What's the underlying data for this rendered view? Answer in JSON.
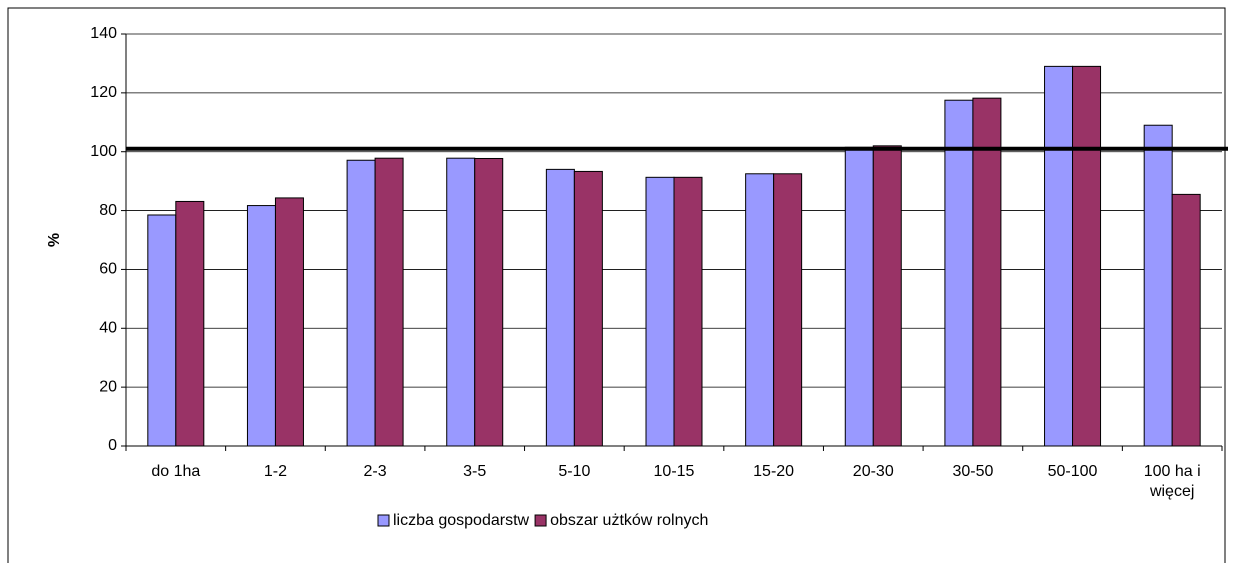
{
  "chart_data": {
    "type": "bar",
    "y_label": "%",
    "categories": [
      "do 1ha",
      "1-2",
      "2-3",
      "3-5",
      "5-10",
      "10-15",
      "15-20",
      "20-30",
      "30-50",
      "50-100",
      "100 ha i więcej"
    ],
    "series": [
      {
        "name": "liczba gospodarstw",
        "color": "#9999ff",
        "values": [
          78.5,
          81.7,
          97.1,
          97.8,
          94.0,
          91.3,
          92.5,
          101.5,
          117.5,
          129.0,
          109.0
        ]
      },
      {
        "name": "obszar użtków rolnych",
        "color": "#993366",
        "values": [
          83.1,
          84.3,
          97.8,
          97.7,
          93.3,
          91.3,
          92.5,
          102.0,
          118.2,
          129.0,
          85.5
        ]
      }
    ],
    "reference_line": 101,
    "ylim": [
      0,
      140
    ],
    "yticks": [
      0,
      20,
      40,
      60,
      80,
      100,
      120,
      140
    ],
    "grid": true
  }
}
